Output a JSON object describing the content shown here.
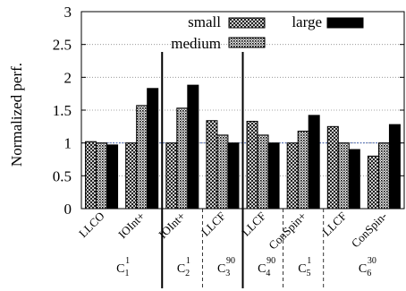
{
  "chart_data": {
    "type": "bar",
    "ylabel": "Normalized perf.",
    "ylim": [
      0,
      3
    ],
    "yticks": [
      "0",
      "0.5",
      "1",
      "1.5",
      "2",
      "2.5",
      "3"
    ],
    "ytick_values": [
      0,
      0.5,
      1,
      1.5,
      2,
      2.5,
      3
    ],
    "grid": "horizontal dotted",
    "reference_line": 1,
    "legend_placement": "top",
    "series": [
      {
        "name": "small",
        "pattern": "crosshatch"
      },
      {
        "name": "medium",
        "pattern": "dense-dots"
      },
      {
        "name": "large",
        "pattern": "solid",
        "color": "#000000"
      }
    ],
    "categories": [
      "LLCO",
      "IOInt+",
      "IOInt+",
      "LLCF",
      "LLCF",
      "ConSpin+",
      "LLCF",
      "ConSpin-"
    ],
    "values": [
      [
        1.02,
        1.0,
        0.97
      ],
      [
        1.0,
        1.57,
        1.83
      ],
      [
        1.0,
        1.53,
        1.88
      ],
      [
        1.34,
        1.12,
        1.0
      ],
      [
        1.33,
        1.12,
        1.0
      ],
      [
        1.0,
        1.18,
        1.42
      ],
      [
        1.25,
        1.0,
        0.9
      ],
      [
        0.8,
        1.0,
        1.28
      ]
    ],
    "groups": [
      {
        "base": "C",
        "sub": "1",
        "sup": "1",
        "span": [
          0,
          1
        ]
      },
      {
        "base": "C",
        "sub": "2",
        "sup": "1",
        "span": [
          2,
          2
        ]
      },
      {
        "base": "C",
        "sub": "3",
        "sup": "90",
        "span": [
          3,
          3
        ]
      },
      {
        "base": "C",
        "sub": "4",
        "sup": "90",
        "span": [
          4,
          4
        ]
      },
      {
        "base": "C",
        "sub": "5",
        "sup": "1",
        "span": [
          5,
          5
        ]
      },
      {
        "base": "C",
        "sub": "6",
        "sup": "30",
        "span": [
          6,
          7
        ]
      }
    ],
    "colors": {
      "reference_line": "#3355aa",
      "large": "#000000"
    }
  }
}
